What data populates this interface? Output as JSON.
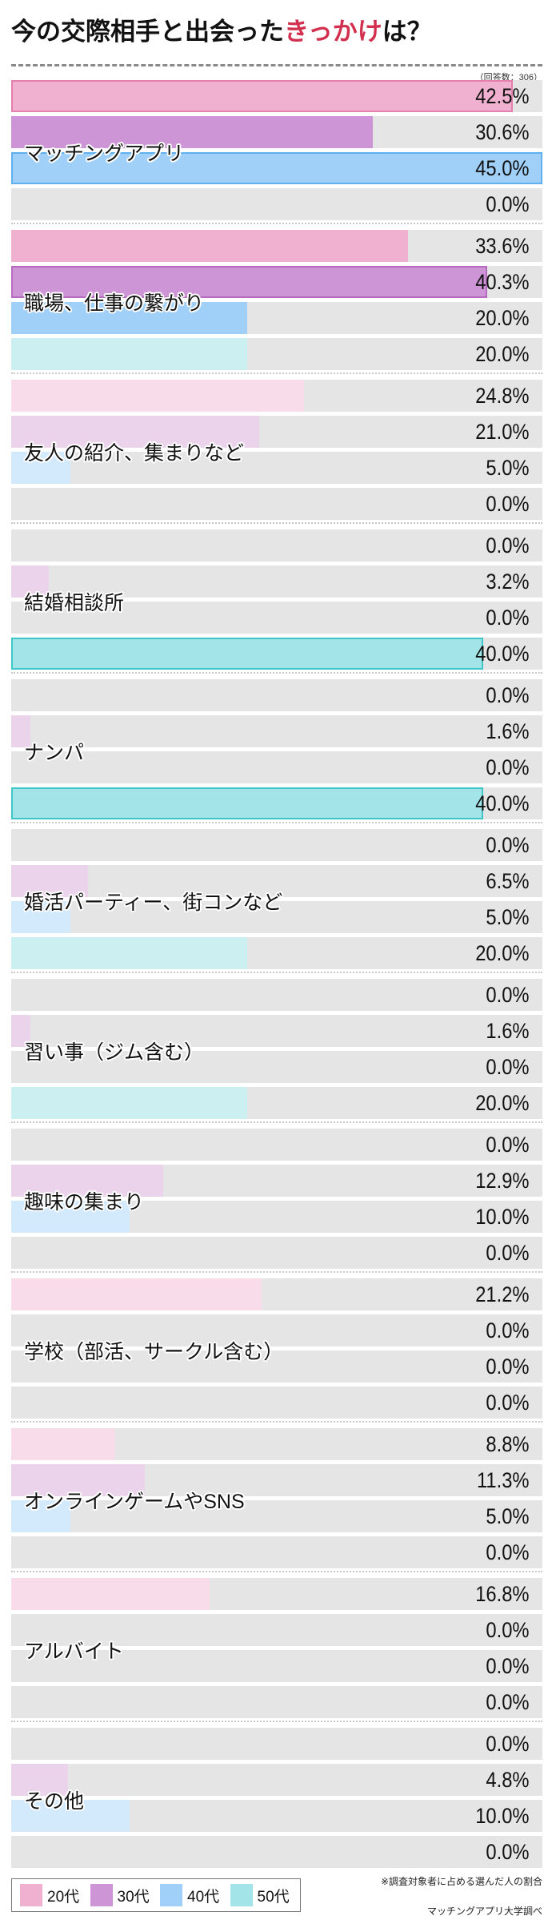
{
  "header": {
    "title_prefix": "今の交際相手と出会った",
    "title_highlight": "きっかけ",
    "title_suffix": "は？",
    "respondents": "（回答数：306）"
  },
  "colors": {
    "highlight_text": "#d2304f",
    "track": "#e5e5e5",
    "age_colors": {
      "20代": {
        "normal": "#f0b0d0",
        "light": "#f8dcea",
        "border": "#e57fad"
      },
      "30代": {
        "normal": "#ce95d6",
        "light": "#ecd3ec",
        "border": "#b56cbf"
      },
      "40代": {
        "normal": "#a0d0f8",
        "light": "#d3e9fc",
        "border": "#5fb0ee"
      },
      "50代": {
        "normal": "#a3e4e8",
        "light": "#ccf0f2",
        "border": "#3fc6c8"
      }
    }
  },
  "chart_data": {
    "type": "bar",
    "orientation": "horizontal",
    "xlim": [
      0,
      45
    ],
    "unit": "%",
    "series_names": [
      "20代",
      "30代",
      "40代",
      "50代"
    ],
    "categories": [
      {
        "label": "マッチングアプリ",
        "values": [
          "42.5%",
          "30.6%",
          "45.0%",
          "0.0%"
        ],
        "nums": [
          42.5,
          30.6,
          45.0,
          0.0
        ],
        "styles": [
          "top",
          "normal",
          "top",
          "light"
        ]
      },
      {
        "label": "職場、仕事の繋がり",
        "values": [
          "33.6%",
          "40.3%",
          "20.0%",
          "20.0%"
        ],
        "nums": [
          33.6,
          40.3,
          20.0,
          20.0
        ],
        "styles": [
          "normal",
          "top",
          "normal",
          "light"
        ]
      },
      {
        "label": "友人の紹介、集まりなど",
        "values": [
          "24.8%",
          "21.0%",
          "5.0%",
          "0.0%"
        ],
        "nums": [
          24.8,
          21.0,
          5.0,
          0.0
        ],
        "styles": [
          "light",
          "light",
          "light",
          "light"
        ]
      },
      {
        "label": "結婚相談所",
        "values": [
          "0.0%",
          "3.2%",
          "0.0%",
          "40.0%"
        ],
        "nums": [
          0.0,
          3.2,
          0.0,
          40.0
        ],
        "styles": [
          "light",
          "light",
          "light",
          "top"
        ]
      },
      {
        "label": "ナンパ",
        "values": [
          "0.0%",
          "1.6%",
          "0.0%",
          "40.0%"
        ],
        "nums": [
          0.0,
          1.6,
          0.0,
          40.0
        ],
        "styles": [
          "light",
          "light",
          "light",
          "top"
        ]
      },
      {
        "label": "婚活パーティー、街コンなど",
        "values": [
          "0.0%",
          "6.5%",
          "5.0%",
          "20.0%"
        ],
        "nums": [
          0.0,
          6.5,
          5.0,
          20.0
        ],
        "styles": [
          "light",
          "light",
          "light",
          "light"
        ]
      },
      {
        "label": "習い事（ジム含む）",
        "values": [
          "0.0%",
          "1.6%",
          "0.0%",
          "20.0%"
        ],
        "nums": [
          0.0,
          1.6,
          0.0,
          20.0
        ],
        "styles": [
          "light",
          "light",
          "light",
          "light"
        ]
      },
      {
        "label": "趣味の集まり",
        "values": [
          "0.0%",
          "12.9%",
          "10.0%",
          "0.0%"
        ],
        "nums": [
          0.0,
          12.9,
          10.0,
          0.0
        ],
        "styles": [
          "light",
          "light",
          "light",
          "light"
        ]
      },
      {
        "label": "学校（部活、サークル含む）",
        "values": [
          "21.2%",
          "0.0%",
          "0.0%",
          "0.0%"
        ],
        "nums": [
          21.2,
          0.0,
          0.0,
          0.0
        ],
        "styles": [
          "light",
          "light",
          "light",
          "light"
        ]
      },
      {
        "label": "オンラインゲームやSNS",
        "values": [
          "8.8%",
          "11.3%",
          "5.0%",
          "0.0%"
        ],
        "nums": [
          8.8,
          11.3,
          5.0,
          0.0
        ],
        "styles": [
          "light",
          "light",
          "light",
          "light"
        ]
      },
      {
        "label": "アルバイト",
        "values": [
          "16.8%",
          "0.0%",
          "0.0%",
          "0.0%"
        ],
        "nums": [
          16.8,
          0.0,
          0.0,
          0.0
        ],
        "styles": [
          "light",
          "light",
          "light",
          "light"
        ]
      },
      {
        "label": "その他",
        "values": [
          "0.0%",
          "4.8%",
          "10.0%",
          "0.0%"
        ],
        "nums": [
          0.0,
          4.8,
          10.0,
          0.0
        ],
        "styles": [
          "light",
          "light",
          "light",
          "light"
        ]
      }
    ],
    "legend": [
      "20代",
      "30代",
      "40代",
      "50代"
    ],
    "legend_placement": "bottom-left"
  },
  "footer": {
    "note": "※調査対象者に占める選んだ人の割合",
    "source": "マッチングアプリ大学調べ"
  }
}
